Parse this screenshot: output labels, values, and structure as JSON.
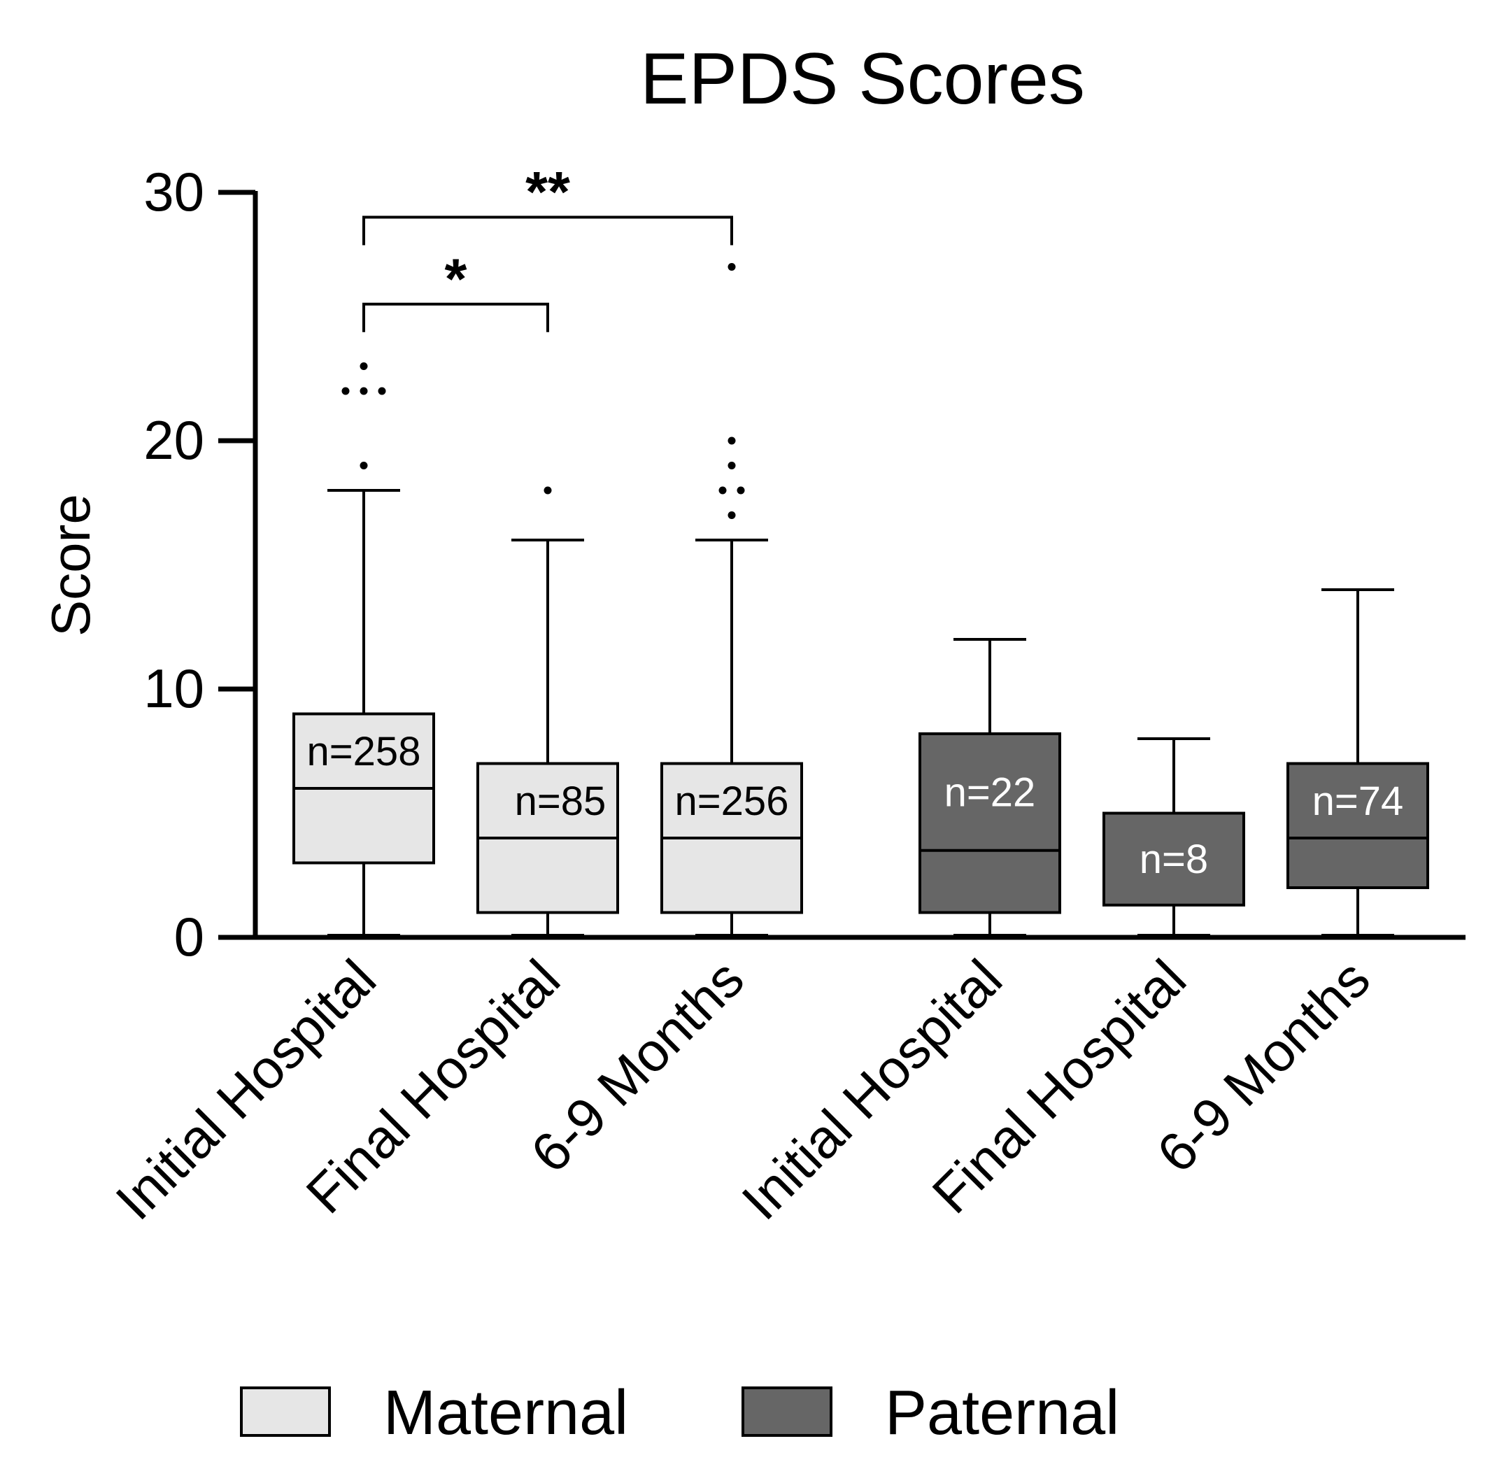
{
  "chart_data": {
    "type": "box",
    "title": "EPDS Scores",
    "xlabel": "",
    "ylabel": "Score",
    "ylim": [
      0,
      30
    ],
    "yticks": [
      0,
      10,
      20,
      30
    ],
    "grid": false,
    "legend_position": "bottom",
    "colors": {
      "Maternal": "#e6e6e6",
      "Paternal": "#666666",
      "outline": "#000000"
    },
    "legend": [
      {
        "name": "Maternal",
        "color": "#e6e6e6"
      },
      {
        "name": "Paternal",
        "color": "#666666"
      }
    ],
    "boxes": [
      {
        "category": "Initial Hospital",
        "group": "Maternal",
        "n_label": "n=258",
        "min": 0,
        "q1": 3,
        "median": 6,
        "q3": 9,
        "max": 18,
        "outliers": [
          19,
          22,
          22,
          22,
          23
        ]
      },
      {
        "category": "Final Hospital",
        "group": "Maternal",
        "n_label": "n=85",
        "min": 0,
        "q1": 1,
        "median": 4,
        "q3": 7,
        "max": 16,
        "outliers": [
          18
        ]
      },
      {
        "category": "6-9 Months",
        "group": "Maternal",
        "n_label": "n=256",
        "min": 0,
        "q1": 1,
        "median": 4,
        "q3": 7,
        "max": 16,
        "outliers": [
          17,
          18,
          18,
          19,
          20,
          27
        ]
      },
      {
        "category": "Initial Hospital",
        "group": "Paternal",
        "n_label": "n=22",
        "min": 0,
        "q1": 1,
        "median": 3.5,
        "q3": 8.2,
        "max": 12,
        "outliers": []
      },
      {
        "category": "Final Hospital",
        "group": "Paternal",
        "n_label": "n=8",
        "min": 0,
        "q1": 1.3,
        "median": 5,
        "q3": 5,
        "max": 8,
        "outliers": []
      },
      {
        "category": "6-9 Months",
        "group": "Paternal",
        "n_label": "n=74",
        "min": 0,
        "q1": 2,
        "median": 4,
        "q3": 7,
        "max": 14,
        "outliers": []
      }
    ],
    "annotations": [
      {
        "label": "**",
        "from": 0,
        "to": 2,
        "y": 29
      },
      {
        "label": "*",
        "from": 0,
        "to": 1,
        "y": 25.5
      }
    ]
  }
}
